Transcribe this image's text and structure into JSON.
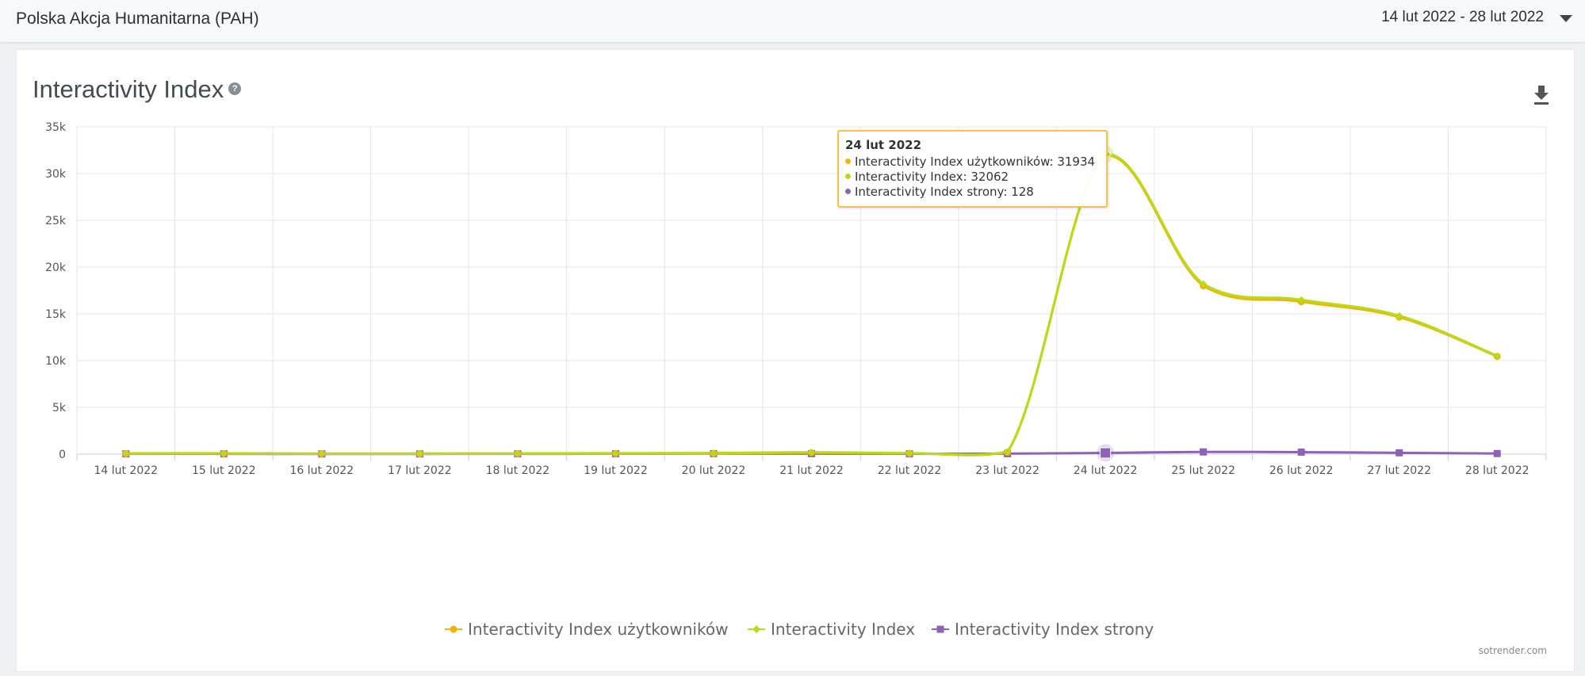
{
  "header": {
    "org_name": "Polska Akcja Humanitarna (PAH)",
    "date_range": "14 lut 2022 - 28 lut 2022"
  },
  "card": {
    "title": "Interactivity Index",
    "help_icon": "question-circle-icon",
    "download_icon": "download-icon",
    "watermark": "sotrender.com"
  },
  "tooltip": {
    "title": "24 lut 2022",
    "rows": [
      {
        "label": "Interactivity Index użytkowników: 31934",
        "color": "#f0b400"
      },
      {
        "label": "Interactivity Index: 32062",
        "color": "#b7d91e"
      },
      {
        "label": "Interactivity Index strony: 128",
        "color": "#8e62b4"
      }
    ]
  },
  "chart_data": {
    "type": "line",
    "categories": [
      "14 lut 2022",
      "15 lut 2022",
      "16 lut 2022",
      "17 lut 2022",
      "18 lut 2022",
      "19 lut 2022",
      "20 lut 2022",
      "21 lut 2022",
      "22 lut 2022",
      "23 lut 2022",
      "24 lut 2022",
      "25 lut 2022",
      "26 lut 2022",
      "27 lut 2022",
      "28 lut 2022"
    ],
    "y_tick_labels": [
      "0",
      "5k",
      "10k",
      "15k",
      "20k",
      "25k",
      "30k",
      "35k"
    ],
    "ylim": [
      0,
      35000
    ],
    "grid": true,
    "legend_placement": "bottom-center",
    "series": [
      {
        "name": "Interactivity Index użytkowników",
        "color": "#f0b400",
        "marker": "circle",
        "values": [
          50,
          60,
          40,
          45,
          50,
          60,
          70,
          150,
          80,
          200,
          31934,
          18000,
          16300,
          14650,
          10450
        ]
      },
      {
        "name": "Interactivity Index",
        "color": "#b7d91e",
        "marker": "diamond",
        "values": [
          80,
          90,
          60,
          70,
          80,
          100,
          120,
          200,
          110,
          250,
          32062,
          18200,
          16500,
          14800,
          10500
        ]
      },
      {
        "name": "Interactivity Index strony",
        "color": "#8e62b4",
        "marker": "square",
        "values": [
          30,
          30,
          20,
          25,
          30,
          40,
          50,
          50,
          30,
          50,
          128,
          230,
          210,
          140,
          60
        ]
      }
    ]
  }
}
